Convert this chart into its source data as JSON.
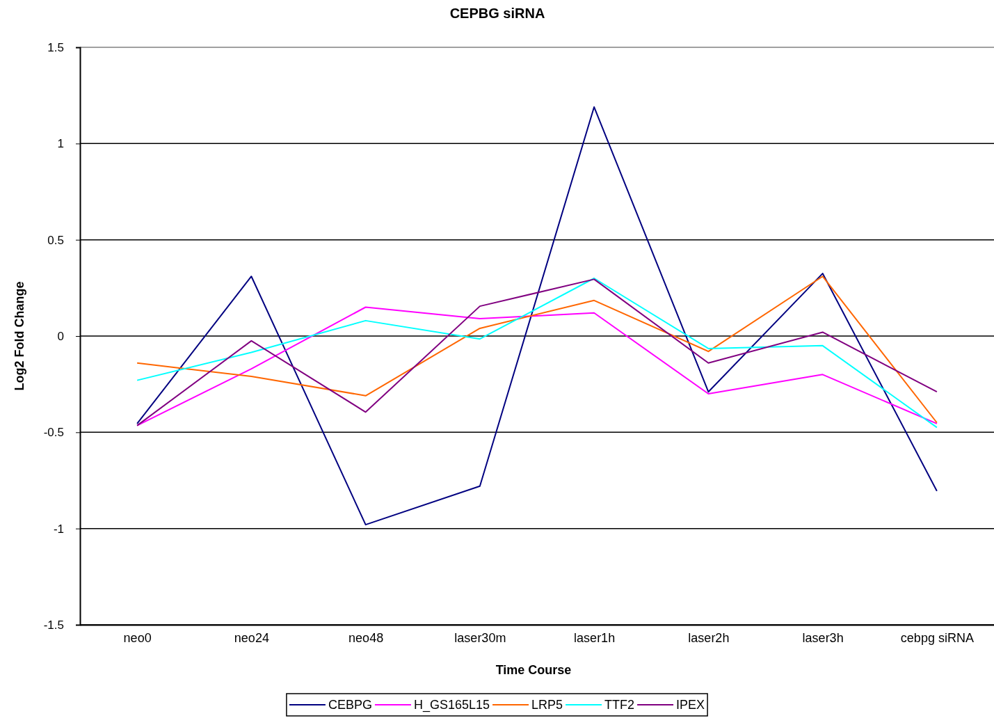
{
  "chart_data": {
    "type": "line",
    "title": "CEPBG siRNA",
    "xlabel": "Time Course",
    "ylabel": "Log2 Fold Change",
    "categories": [
      "neo0",
      "neo24",
      "neo48",
      "laser30m",
      "laser1h",
      "laser2h",
      "laser3h",
      "cebpg siRNA"
    ],
    "series": [
      {
        "name": "CEBPG",
        "color": "#000080",
        "values": [
          -0.455,
          0.31,
          -0.98,
          -0.78,
          1.19,
          -0.29,
          0.325,
          -0.805
        ]
      },
      {
        "name": "H_GS165L15",
        "color": "#ff00ff",
        "values": [
          -0.465,
          -0.17,
          0.15,
          0.09,
          0.12,
          -0.3,
          -0.2,
          -0.455
        ]
      },
      {
        "name": "LRP5",
        "color": "#ff6600",
        "values": [
          -0.14,
          -0.21,
          -0.31,
          0.04,
          0.185,
          -0.08,
          0.31,
          -0.45
        ]
      },
      {
        "name": "TTF2",
        "color": "#00ffff",
        "values": [
          -0.23,
          -0.085,
          0.08,
          -0.015,
          0.3,
          -0.065,
          -0.05,
          -0.475
        ]
      },
      {
        "name": "IPEX",
        "color": "#800080",
        "values": [
          -0.465,
          -0.025,
          -0.395,
          0.155,
          0.295,
          -0.14,
          0.02,
          -0.29
        ]
      }
    ],
    "ylim": [
      -1.5,
      1.5
    ],
    "yticks": [
      -1.5,
      -1,
      -0.5,
      0,
      0.5,
      1,
      1.5
    ],
    "grid": "y",
    "legend": "bottom",
    "marker": "none",
    "line_style": "solid"
  }
}
